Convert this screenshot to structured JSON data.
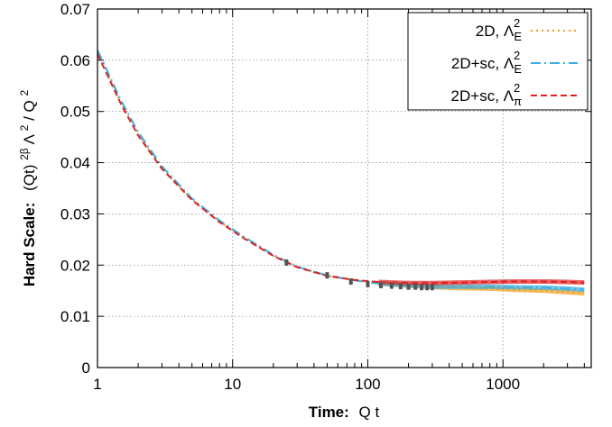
{
  "chart_data": {
    "type": "line",
    "xscale": "log",
    "xlim": [
      1,
      4500
    ],
    "ylim": [
      0,
      0.07
    ],
    "grid": true,
    "legend_position": "top-right",
    "x_ticks": [
      1,
      10,
      100,
      1000
    ],
    "x_tick_labels": [
      "1",
      "10",
      "100",
      "1000"
    ],
    "y_ticks": [
      0,
      0.01,
      0.02,
      0.03,
      0.04,
      0.05,
      0.06,
      0.07
    ],
    "y_tick_labels": [
      "0",
      "0.01",
      "0.02",
      "0.03",
      "0.04",
      "0.05",
      "0.06",
      "0.07"
    ],
    "xlabel": {
      "bold": "Time:",
      "normal": "Q t"
    },
    "ylabel": {
      "bold": "Hard Scale:",
      "normal": "(Qt)",
      "sup1": "2β",
      "mid": " Λ",
      "sup2": "2",
      "end": " / Q",
      "sup3": "2"
    },
    "series": [
      {
        "legend": {
          "prefix": "2D, Λ",
          "sub": "E",
          "sup": "2"
        },
        "color": "#f0a020",
        "dash": "2 4",
        "x": [
          1,
          1.5,
          2,
          3,
          5,
          8,
          12,
          20,
          30,
          50,
          80,
          120,
          200,
          300,
          500,
          800,
          1200,
          2000,
          3000,
          4000
        ],
        "y": [
          0.0615,
          0.0515,
          0.0455,
          0.039,
          0.0328,
          0.0285,
          0.0254,
          0.0219,
          0.0196,
          0.0179,
          0.017,
          0.0165,
          0.016,
          0.0157,
          0.0155,
          0.0154,
          0.0152,
          0.015,
          0.0147,
          0.0145
        ]
      },
      {
        "legend": {
          "prefix": "2D+sc, Λ",
          "sub": "E",
          "sup": "2"
        },
        "color": "#3aaee0",
        "dash": "11 4 2 4",
        "x": [
          1,
          1.5,
          2,
          3,
          5,
          8,
          12,
          20,
          30,
          50,
          80,
          120,
          200,
          300,
          500,
          800,
          1200,
          2000,
          3000,
          4000
        ],
        "y": [
          0.062,
          0.052,
          0.046,
          0.0393,
          0.033,
          0.0287,
          0.0256,
          0.022,
          0.0197,
          0.018,
          0.017,
          0.0164,
          0.016,
          0.0158,
          0.0158,
          0.0158,
          0.0157,
          0.0156,
          0.0154,
          0.0152
        ]
      },
      {
        "legend": {
          "prefix": "2D+sc, Λ",
          "sub": "π",
          "sup": "2"
        },
        "color": "#e02020",
        "dash": "7 4",
        "x": [
          1,
          1.5,
          2,
          3,
          5,
          8,
          12,
          20,
          30,
          50,
          80,
          120,
          200,
          300,
          500,
          800,
          1200,
          2000,
          3000,
          4000
        ],
        "y": [
          0.0612,
          0.0513,
          0.0453,
          0.0388,
          0.0327,
          0.0284,
          0.0253,
          0.0218,
          0.0196,
          0.0179,
          0.0171,
          0.0167,
          0.0165,
          0.0165,
          0.0166,
          0.0167,
          0.0168,
          0.0168,
          0.0167,
          0.0166
        ]
      }
    ],
    "markers": {
      "color": "#555555",
      "x": [
        25,
        50,
        75,
        100,
        125,
        150,
        175,
        200,
        225,
        250,
        275,
        300
      ],
      "y": [
        0.0205,
        0.018,
        0.0168,
        0.0163,
        0.0161,
        0.016,
        0.0159,
        0.0158,
        0.0158,
        0.0157,
        0.0157,
        0.0157
      ]
    }
  }
}
